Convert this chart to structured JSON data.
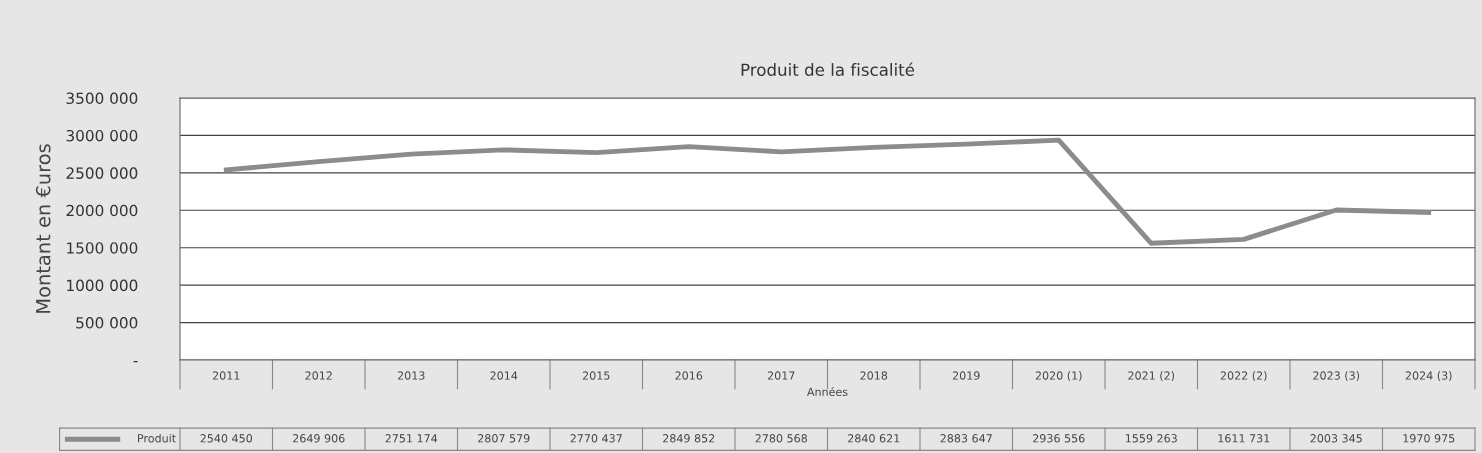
{
  "chart_data": {
    "type": "line",
    "title": "Produit de la fiscalité",
    "xlabel": "Années",
    "ylabel": "Montant en €uros",
    "categories": [
      "2011",
      "2012",
      "2013",
      "2014",
      "2015",
      "2016",
      "2017",
      "2018",
      "2019",
      "2020 (1)",
      "2021 (2)",
      "2022 (2)",
      "2023 (3)",
      "2024 (3)"
    ],
    "series": [
      {
        "name": "Produit",
        "color": "#8c8c8c",
        "values": [
          2540450,
          2649906,
          2751174,
          2807579,
          2770437,
          2849852,
          2780568,
          2840621,
          2883647,
          2936556,
          1559263,
          1611731,
          2003345,
          1970975
        ],
        "value_labels": [
          "2540 450",
          "2649 906",
          "2751 174",
          "2807 579",
          "2770 437",
          "2849 852",
          "2780 568",
          "2840 621",
          "2883 647",
          "2936 556",
          "1559 263",
          "1611 731",
          "2003 345",
          "1970 975"
        ]
      }
    ],
    "ylim": [
      0,
      3500000
    ],
    "yticks": [
      {
        "value": 0,
        "label": "-"
      },
      {
        "value": 500000,
        "label": "500 000"
      },
      {
        "value": 1000000,
        "label": "1000 000"
      },
      {
        "value": 1500000,
        "label": "1500 000"
      },
      {
        "value": 2000000,
        "label": "2000 000"
      },
      {
        "value": 2500000,
        "label": "2500 000"
      },
      {
        "value": 3000000,
        "label": "3000 000"
      },
      {
        "value": 3500000,
        "label": "3500 000"
      }
    ],
    "grid": "y",
    "legend": "bottom",
    "marker": "none",
    "line_style": "solid"
  }
}
